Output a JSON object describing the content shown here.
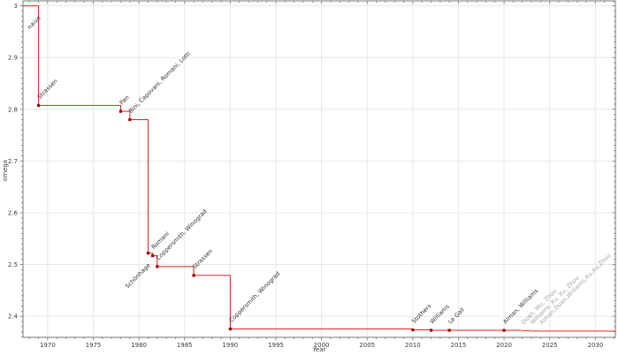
{
  "chart_data": {
    "type": "line",
    "subtype": "step-post",
    "title": "",
    "xlabel": "Year",
    "ylabel": "omega",
    "xlim": [
      1967.3,
      2032.2
    ],
    "ylim": [
      2.3593,
      3.0095
    ],
    "x_major_ticks": [
      1970,
      1975,
      1980,
      1985,
      1990,
      1995,
      2000,
      2005,
      2010,
      2015,
      2020,
      2025,
      2030
    ],
    "x_minor_step": 1,
    "y_major_ticks": [
      2.4,
      2.5,
      2.6,
      2.7,
      2.8,
      2.9,
      3.0
    ],
    "y_major_tick_labels": [
      "2.4",
      "2.5",
      "2.6",
      "2.7",
      "2.8",
      "2.9",
      "3"
    ],
    "y_minor_step": 0.01,
    "grid": "major-both",
    "legend": "none",
    "start_value": 3.0,
    "start_label": "naive",
    "points": [
      {
        "year": 1969,
        "omega": 2.8074,
        "label": "Strassen"
      },
      {
        "year": 1978,
        "omega": 2.796,
        "label": "Pan"
      },
      {
        "year": 1979,
        "omega": 2.78,
        "label": "Bini, Capovani, Romani, Lotti"
      },
      {
        "year": 1981,
        "omega": 2.522,
        "label": "Schönhage",
        "label_pos": "below"
      },
      {
        "year": 1981.5,
        "omega": 2.517,
        "label": "Romani"
      },
      {
        "year": 1982,
        "omega": 2.496,
        "label": "Coppersmith, Winograd"
      },
      {
        "year": 1986,
        "omega": 2.479,
        "label": "Strassen"
      },
      {
        "year": 1990,
        "omega": 2.3755,
        "label": "Coppersmith, Winograd"
      },
      {
        "year": 2010,
        "omega": 2.3737,
        "label": "Stothers"
      },
      {
        "year": 2012,
        "omega": 2.3729,
        "label": "Williams"
      },
      {
        "year": 2014,
        "omega": 2.37287,
        "label": "Le Gall"
      },
      {
        "year": 2020,
        "omega": 2.37286,
        "label": "Alman, Williams"
      },
      {
        "year": 2022,
        "omega": 2.371866,
        "label": "Duan, Wu, Zhou",
        "faded": true
      },
      {
        "year": 2023,
        "omega": 2.371552,
        "label": "Williams, Xu, Xu, Zhou",
        "faded": true
      },
      {
        "year": 2024,
        "omega": 2.371339,
        "label": "Alman,Duan,Williams,Xu,Xu,Zhou",
        "faded": true
      }
    ],
    "colors": {
      "line": "#e02020",
      "marker": "#a00000",
      "faded_marker": "#f2a8a8",
      "label": "#333333",
      "faded_label": "#a3a3a3",
      "grid": "#e8e8e8",
      "spine": "#777777",
      "tick": "#777777",
      "tick_label": "#3d3d3d"
    }
  }
}
